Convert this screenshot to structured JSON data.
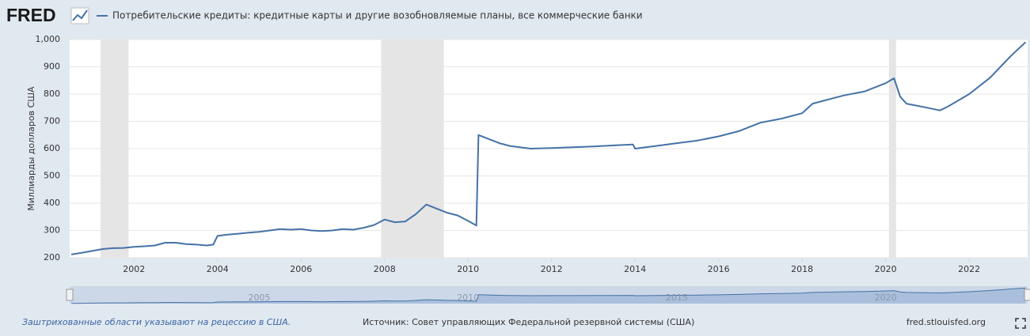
{
  "chart_data": {
    "type": "line",
    "logo": "FRED",
    "y_label": "Миллиарды долларов США",
    "note": "Заштрихованные области указывают на рецессию в США.",
    "source": "Источник: Совет управляющих Федеральной резервной системы (США)",
    "site": "fred.stlouisfed.org",
    "xlim": [
      2000.46,
      2023.4
    ],
    "xticks": [
      2002,
      2004,
      2006,
      2008,
      2010,
      2012,
      2014,
      2016,
      2018,
      2020,
      2022
    ],
    "navigator_ticks": [
      2005,
      2010,
      2015,
      2020
    ],
    "ylim": [
      200,
      1000
    ],
    "yticks": [
      200,
      300,
      400,
      500,
      600,
      700,
      800,
      900,
      {
        "value": 1000,
        "label": "1,000"
      }
    ],
    "grid": true,
    "recessions": [
      [
        2001.2,
        2001.87
      ],
      [
        2007.92,
        2009.42
      ],
      [
        2020.08,
        2020.25
      ]
    ],
    "x": [
      2000.5,
      2000.75,
      2001.0,
      2001.25,
      2001.5,
      2001.75,
      2002.0,
      2002.25,
      2002.5,
      2002.75,
      2003.0,
      2003.25,
      2003.5,
      2003.75,
      2003.9,
      2004.0,
      2004.25,
      2004.5,
      2004.75,
      2005.0,
      2005.25,
      2005.5,
      2005.75,
      2006.0,
      2006.25,
      2006.5,
      2006.75,
      2007.0,
      2007.25,
      2007.5,
      2007.75,
      2008.0,
      2008.25,
      2008.5,
      2008.75,
      2009.0,
      2009.25,
      2009.5,
      2009.75,
      2010.0,
      2010.2,
      2010.25,
      2010.5,
      2010.75,
      2011.0,
      2011.5,
      2012.0,
      2012.5,
      2013.0,
      2013.5,
      2013.95,
      2014.0,
      2014.5,
      2015.0,
      2015.5,
      2016.0,
      2016.5,
      2017.0,
      2017.5,
      2018.0,
      2018.25,
      2018.5,
      2019.0,
      2019.5,
      2020.0,
      2020.2,
      2020.35,
      2020.5,
      2021.0,
      2021.3,
      2021.5,
      2022.0,
      2022.5,
      2023.0,
      2023.35
    ],
    "series": [
      {
        "name": "Потребительские кредиты: кредитные карты и другие возобновляемые планы, все коммерческие банки",
        "color": "#4572a7",
        "values": [
          212,
          218,
          225,
          232,
          235,
          236,
          240,
          242,
          245,
          255,
          255,
          250,
          248,
          245,
          248,
          280,
          285,
          288,
          292,
          295,
          300,
          305,
          303,
          305,
          300,
          298,
          300,
          305,
          303,
          310,
          320,
          340,
          330,
          333,
          360,
          395,
          380,
          365,
          355,
          335,
          318,
          650,
          635,
          620,
          610,
          600,
          602,
          605,
          608,
          612,
          615,
          600,
          610,
          620,
          630,
          645,
          665,
          695,
          710,
          730,
          765,
          775,
          795,
          810,
          840,
          858,
          790,
          765,
          750,
          740,
          755,
          800,
          860,
          940,
          990
        ]
      }
    ]
  }
}
